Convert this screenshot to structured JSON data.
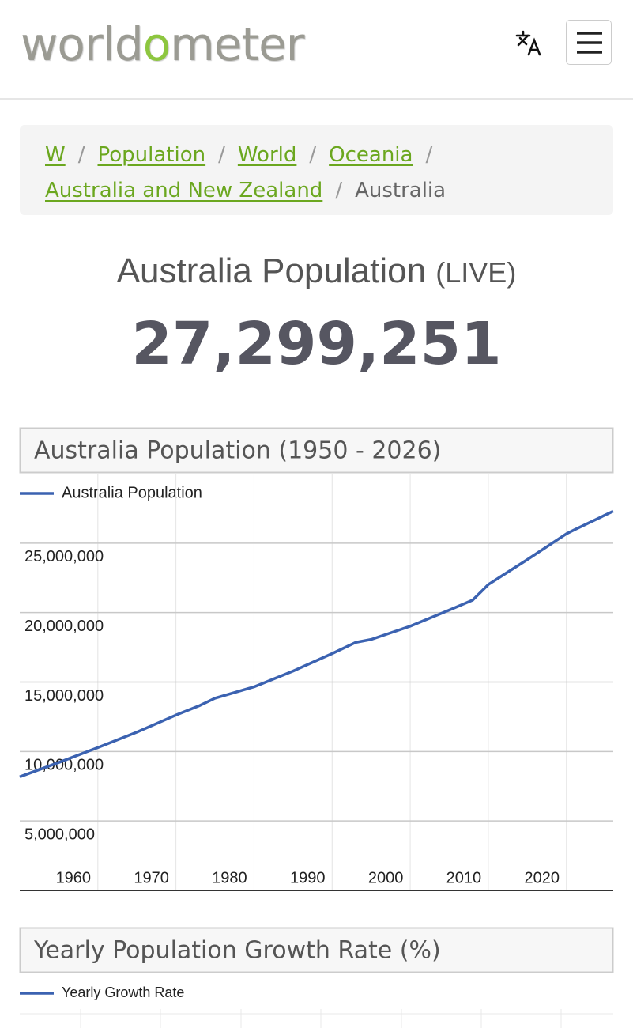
{
  "header": {
    "logo": [
      "world",
      "o",
      "meter"
    ]
  },
  "breadcrumbs": {
    "separator": "/",
    "links": [
      "W",
      "Population",
      "World",
      "Oceania",
      "Australia and New Zealand"
    ],
    "current": "Australia"
  },
  "page_title": {
    "text": "Australia Population",
    "suffix": "(LIVE)"
  },
  "counter": "27,299,251",
  "chart_data": [
    {
      "type": "line",
      "title": "Australia Population (1950 - 2026)",
      "x": [
        1950,
        1955,
        1960,
        1965,
        1970,
        1973,
        1975,
        1980,
        1985,
        1990,
        1993,
        1995,
        2000,
        2005,
        2008,
        2010,
        2015,
        2020,
        2021,
        2026
      ],
      "series": [
        {
          "name": "Australia Population",
          "color": "#3b62b1",
          "values": [
            8180000,
            9210000,
            10280000,
            11390000,
            12620000,
            13300000,
            13840000,
            14650000,
            15790000,
            17050000,
            17850000,
            18070000,
            19020000,
            20180000,
            20900000,
            22020000,
            23820000,
            25670000,
            25950000,
            27300000
          ]
        }
      ],
      "xlim": [
        1950,
        2026
      ],
      "xticks": [
        1960,
        1970,
        1980,
        1990,
        2000,
        2010,
        2020
      ],
      "ylim": [
        0,
        30000000
      ],
      "yticks": [
        {
          "value": 5000000,
          "label": "5,000,000"
        },
        {
          "value": 10000000,
          "label": "10,000,000"
        },
        {
          "value": 15000000,
          "label": "15,000,000"
        },
        {
          "value": 20000000,
          "label": "20,000,000"
        },
        {
          "value": 25000000,
          "label": "25,000,000"
        }
      ],
      "grid": true,
      "legend": "top"
    },
    {
      "type": "line",
      "title": "Yearly Population Growth Rate (%)",
      "series": [
        {
          "name": "Yearly Growth Rate",
          "color": "#3b62b1"
        }
      ],
      "legend": "top"
    }
  ]
}
